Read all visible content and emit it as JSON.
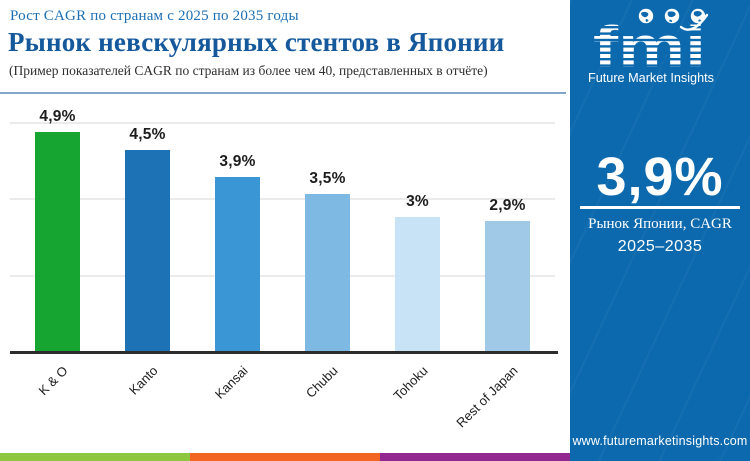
{
  "header": {
    "eyebrow": "Рост CAGR по странам с 2025 по 2035 годы",
    "title": "Рынок невскулярных стентов в Японии",
    "subtitle": "(Пример показателей CAGR по странам из более чем 40, представленных в отчёте)"
  },
  "chart_data": {
    "type": "bar",
    "categories": [
      "K & O",
      "Kanto",
      "Kansai",
      "Chubu",
      "Tohoku",
      "Rest of Japan"
    ],
    "values": [
      4.9,
      4.5,
      3.9,
      3.5,
      3.0,
      2.9
    ],
    "value_labels": [
      "4,9%",
      "4,5%",
      "3,9%",
      "3,5%",
      "3%",
      "2,9%"
    ],
    "bar_colors": [
      "#17a531",
      "#1c72b4",
      "#3b96d5",
      "#7db9e3",
      "#c8e3f5",
      "#a0c9e7"
    ],
    "title": "Рынок невскулярных стентов в Японии",
    "xlabel": "",
    "ylabel": "",
    "ylim": [
      0,
      5.12
    ],
    "grid": true,
    "legend": "none"
  },
  "side_panel": {
    "logo_text": "fmi",
    "logo_tagline": "Future Market Insights",
    "stat_value": "3,9%",
    "stat_caption_line1": "Рынок Японии, CAGR",
    "stat_caption_line2": "2025–2035",
    "website": "www.futuremarketinsights.com",
    "bg_color": "#0d69ad"
  },
  "footer_strip_colors": [
    "#8dc63f",
    "#f26522",
    "#92278f"
  ],
  "accent_colors": {
    "eyebrow_blue": "#1c6fb5",
    "title_blue": "#15599c",
    "divider_blue": "#80a7c8"
  }
}
